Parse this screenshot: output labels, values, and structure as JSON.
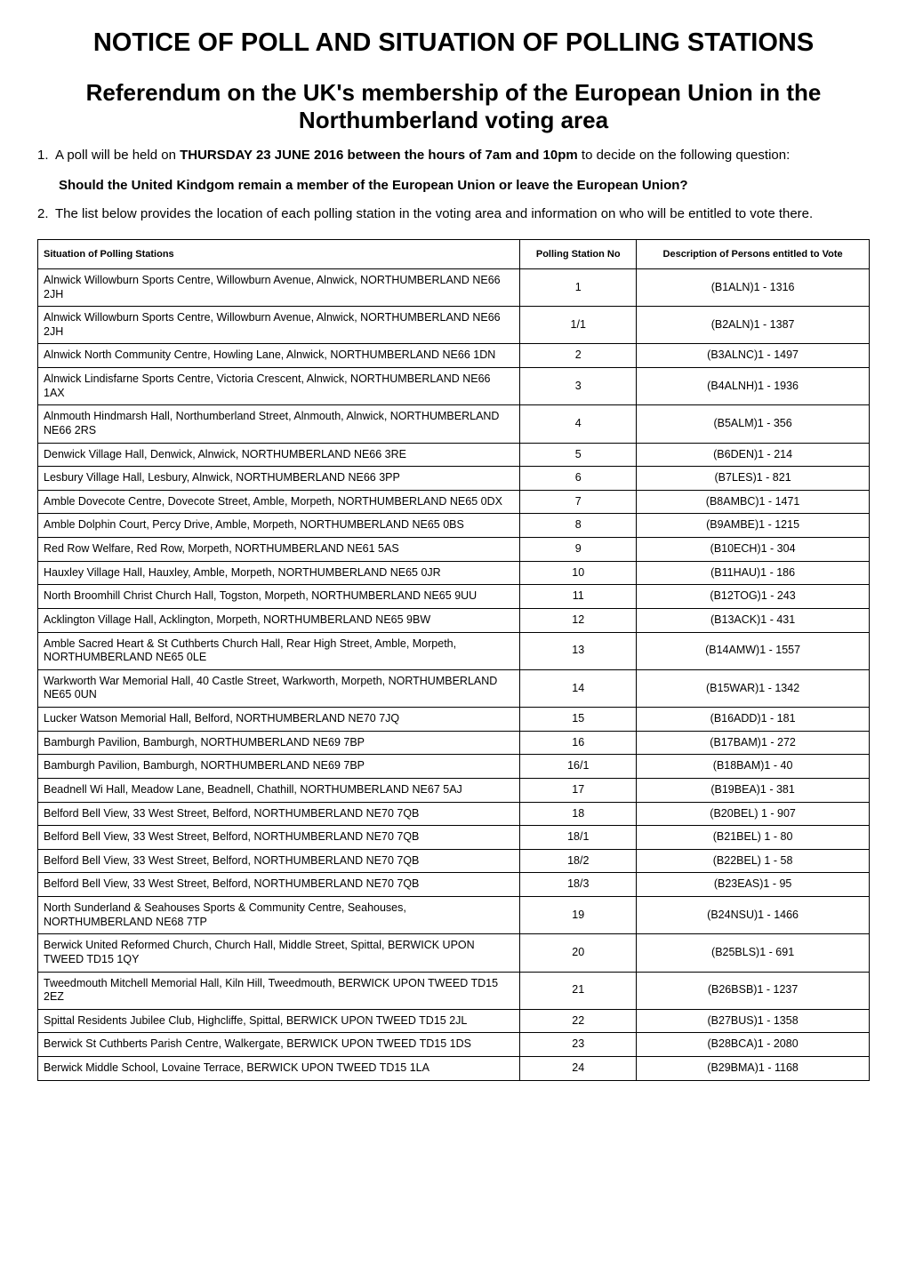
{
  "document": {
    "main_title": "NOTICE OF POLL AND SITUATION OF POLLING STATIONS",
    "sub_title": "Referendum on the UK's membership of the European Union in the Northumberland voting area",
    "item1_num": "1.",
    "item1_pre": "A poll will be held on ",
    "item1_bold": "THURSDAY 23 JUNE 2016 between the hours of 7am and 10pm",
    "item1_post": " to decide on the following question:",
    "question": "Should the United Kindgom remain a member of the European Union or leave the European Union?",
    "item2_num": "2.",
    "item2_text": "The list below provides the location of each polling station in the voting area and information on who will be entitled to vote there."
  },
  "table": {
    "header_situation": "Situation of Polling Stations",
    "header_station_no": "Polling Station No",
    "header_description": "Description of Persons entitled to Vote",
    "col_widths": [
      "58%",
      "14%",
      "28%"
    ],
    "font_size_header": 11,
    "font_size_cell": 12.5,
    "border_color": "#000000",
    "rows": [
      {
        "situation": "Alnwick Willowburn Sports Centre, Willowburn Avenue, Alnwick, NORTHUMBERLAND NE66 2JH",
        "station": "1",
        "desc": "(B1ALN)1 - 1316"
      },
      {
        "situation": "Alnwick Willowburn Sports Centre, Willowburn Avenue, Alnwick, NORTHUMBERLAND NE66 2JH",
        "station": "1/1",
        "desc": "(B2ALN)1 - 1387"
      },
      {
        "situation": "Alnwick North Community Centre, Howling Lane, Alnwick, NORTHUMBERLAND NE66 1DN",
        "station": "2",
        "desc": "(B3ALNC)1 - 1497"
      },
      {
        "situation": "Alnwick Lindisfarne Sports Centre, Victoria Crescent, Alnwick, NORTHUMBERLAND NE66 1AX",
        "station": "3",
        "desc": "(B4ALNH)1 - 1936"
      },
      {
        "situation": "Alnmouth Hindmarsh Hall, Northumberland Street, Alnmouth, Alnwick, NORTHUMBERLAND NE66 2RS",
        "station": "4",
        "desc": "(B5ALM)1 - 356"
      },
      {
        "situation": "Denwick Village Hall, Denwick, Alnwick, NORTHUMBERLAND NE66 3RE",
        "station": "5",
        "desc": "(B6DEN)1 - 214"
      },
      {
        "situation": "Lesbury Village Hall, Lesbury, Alnwick, NORTHUMBERLAND NE66 3PP",
        "station": "6",
        "desc": "(B7LES)1 - 821"
      },
      {
        "situation": "Amble Dovecote Centre, Dovecote Street, Amble, Morpeth, NORTHUMBERLAND NE65 0DX",
        "station": "7",
        "desc": "(B8AMBC)1 - 1471"
      },
      {
        "situation": "Amble Dolphin Court, Percy Drive, Amble, Morpeth, NORTHUMBERLAND NE65 0BS",
        "station": "8",
        "desc": "(B9AMBE)1 - 1215"
      },
      {
        "situation": "Red Row Welfare, Red Row, Morpeth, NORTHUMBERLAND NE61 5AS",
        "station": "9",
        "desc": "(B10ECH)1 - 304"
      },
      {
        "situation": "Hauxley Village Hall, Hauxley, Amble, Morpeth, NORTHUMBERLAND NE65 0JR",
        "station": "10",
        "desc": "(B11HAU)1 - 186"
      },
      {
        "situation": "North Broomhill Christ Church Hall, Togston, Morpeth, NORTHUMBERLAND NE65 9UU",
        "station": "11",
        "desc": "(B12TOG)1 - 243"
      },
      {
        "situation": "Acklington Village Hall, Acklington, Morpeth, NORTHUMBERLAND NE65 9BW",
        "station": "12",
        "desc": "(B13ACK)1 - 431"
      },
      {
        "situation": "Amble Sacred Heart & St Cuthberts Church Hall, Rear High Street, Amble, Morpeth, NORTHUMBERLAND NE65 0LE",
        "station": "13",
        "desc": "(B14AMW)1 - 1557"
      },
      {
        "situation": "Warkworth War Memorial Hall, 40 Castle Street, Warkworth, Morpeth, NORTHUMBERLAND NE65 0UN",
        "station": "14",
        "desc": "(B15WAR)1 - 1342"
      },
      {
        "situation": "Lucker Watson Memorial Hall, Belford, NORTHUMBERLAND NE70 7JQ",
        "station": "15",
        "desc": "(B16ADD)1 - 181"
      },
      {
        "situation": "Bamburgh Pavilion, Bamburgh, NORTHUMBERLAND NE69 7BP",
        "station": "16",
        "desc": "(B17BAM)1 - 272"
      },
      {
        "situation": "Bamburgh Pavilion, Bamburgh, NORTHUMBERLAND NE69 7BP",
        "station": "16/1",
        "desc": "(B18BAM)1 - 40"
      },
      {
        "situation": "Beadnell Wi Hall, Meadow Lane, Beadnell, Chathill, NORTHUMBERLAND NE67 5AJ",
        "station": "17",
        "desc": "(B19BEA)1 - 381"
      },
      {
        "situation": "Belford Bell View, 33 West Street, Belford, NORTHUMBERLAND NE70 7QB",
        "station": "18",
        "desc": "(B20BEL) 1 - 907"
      },
      {
        "situation": "Belford Bell View, 33 West Street, Belford, NORTHUMBERLAND NE70 7QB",
        "station": "18/1",
        "desc": "(B21BEL) 1 - 80"
      },
      {
        "situation": "Belford Bell View, 33 West Street, Belford, NORTHUMBERLAND NE70 7QB",
        "station": "18/2",
        "desc": "(B22BEL) 1 - 58"
      },
      {
        "situation": "Belford Bell View, 33 West Street, Belford, NORTHUMBERLAND NE70 7QB",
        "station": "18/3",
        "desc": "(B23EAS)1 - 95"
      },
      {
        "situation": "North Sunderland & Seahouses Sports & Community Centre, Seahouses, NORTHUMBERLAND NE68 7TP",
        "station": "19",
        "desc": "(B24NSU)1 - 1466"
      },
      {
        "situation": "Berwick United Reformed Church, Church Hall, Middle Street, Spittal, BERWICK UPON TWEED TD15 1QY",
        "station": "20",
        "desc": "(B25BLS)1 - 691"
      },
      {
        "situation": "Tweedmouth Mitchell Memorial Hall, Kiln Hill, Tweedmouth, BERWICK UPON TWEED TD15 2EZ",
        "station": "21",
        "desc": "(B26BSB)1 - 1237"
      },
      {
        "situation": "Spittal Residents Jubilee Club, Highcliffe, Spittal, BERWICK UPON TWEED TD15 2JL",
        "station": "22",
        "desc": "(B27BUS)1 - 1358"
      },
      {
        "situation": "Berwick St Cuthberts Parish Centre, Walkergate, BERWICK UPON TWEED TD15 1DS",
        "station": "23",
        "desc": "(B28BCA)1 - 2080"
      },
      {
        "situation": "Berwick Middle School, Lovaine Terrace, BERWICK UPON TWEED TD15 1LA",
        "station": "24",
        "desc": "(B29BMA)1 - 1168"
      }
    ]
  }
}
